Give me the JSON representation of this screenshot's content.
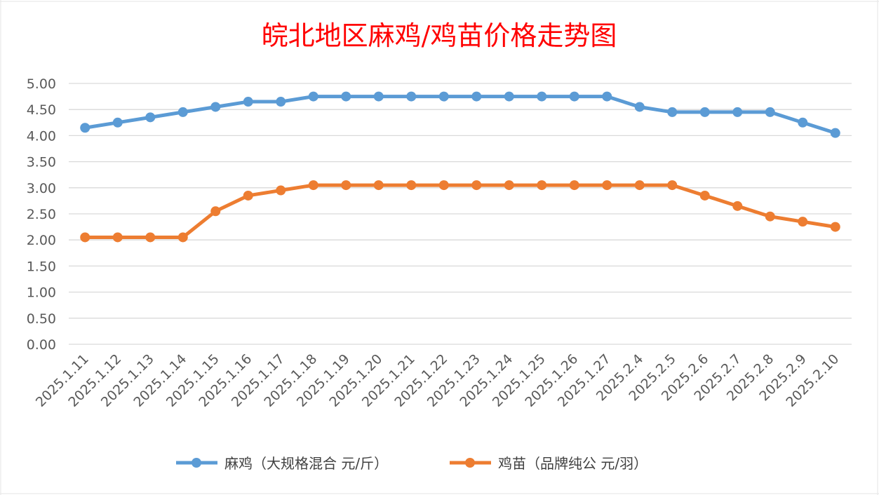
{
  "chart_data": {
    "type": "line",
    "title": "皖北地区麻鸡/鸡苗价格走势图",
    "xlabel": "",
    "ylabel": "",
    "ylim": [
      0,
      5
    ],
    "y_ticks": [
      "0.00",
      "0.50",
      "1.00",
      "1.50",
      "2.00",
      "2.50",
      "3.00",
      "3.50",
      "4.00",
      "4.50",
      "5.00"
    ],
    "grid": true,
    "legend_position": "bottom",
    "categories": [
      "2025.1.11",
      "2025.1.12",
      "2025.1.13",
      "2025.1.14",
      "2025.1.15",
      "2025.1.16",
      "2025.1.17",
      "2025.1.18",
      "2025.1.19",
      "2025.1.20",
      "2025.1.21",
      "2025.1.22",
      "2025.1.23",
      "2025.1.24",
      "2025.1.25",
      "2025.1.26",
      "2025.1.27",
      "2025.2.4",
      "2025.2.5",
      "2025.2.6",
      "2025.2.7",
      "2025.2.8",
      "2025.2.9",
      "2025.2.10"
    ],
    "series": [
      {
        "name": "麻鸡（大规格混合 元/斤）",
        "color": "#5b9bd5",
        "values": [
          4.15,
          4.25,
          4.35,
          4.45,
          4.55,
          4.65,
          4.65,
          4.75,
          4.75,
          4.75,
          4.75,
          4.75,
          4.75,
          4.75,
          4.75,
          4.75,
          4.75,
          4.55,
          4.45,
          4.45,
          4.45,
          4.45,
          4.25,
          4.05
        ]
      },
      {
        "name": "鸡苗（品牌纯公 元/羽）",
        "color": "#ed7d31",
        "values": [
          2.05,
          2.05,
          2.05,
          2.05,
          2.55,
          2.85,
          2.95,
          3.05,
          3.05,
          3.05,
          3.05,
          3.05,
          3.05,
          3.05,
          3.05,
          3.05,
          3.05,
          3.05,
          3.05,
          2.85,
          2.65,
          2.45,
          2.35,
          2.25
        ]
      }
    ]
  }
}
